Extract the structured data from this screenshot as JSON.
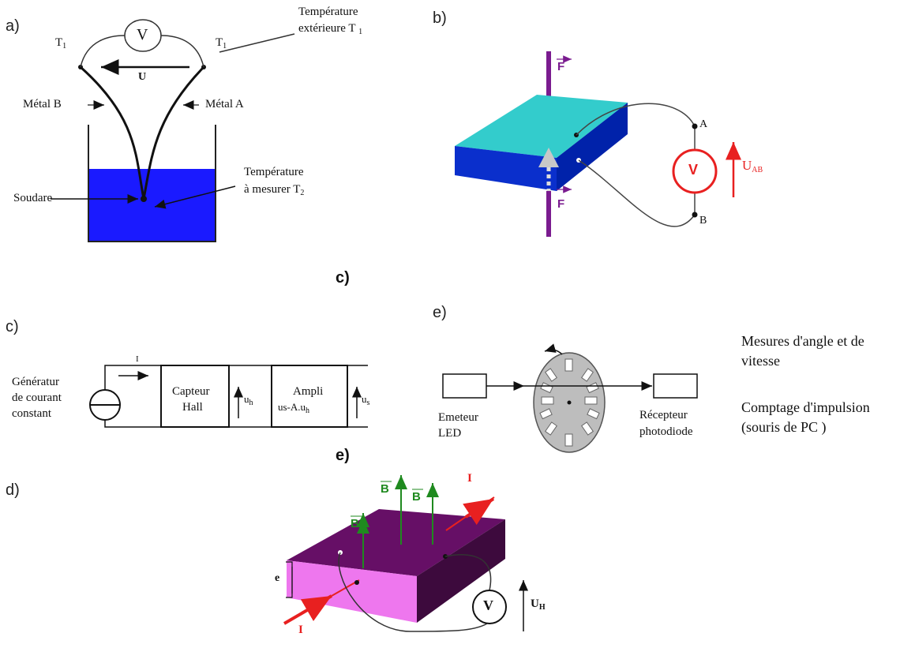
{
  "panel_labels": {
    "a": "a)",
    "b": "b)",
    "c": "c)",
    "e": "e)",
    "d": "d)",
    "c_caption": "c)",
    "e_caption": "e)"
  },
  "thermocouple": {
    "t1_left": "T",
    "t1_left_sub": "1",
    "t1_right": "T",
    "t1_right_sub": "1",
    "voltmeter": "V",
    "u": "U",
    "ext_temp_line1": "Température",
    "ext_temp_line2": "extérieure T",
    "ext_temp_sub": "1",
    "metal_b": "Métal B",
    "metal_a": "Métal A",
    "soudare": "Soudare",
    "meas_temp_line1": "Température",
    "meas_temp_line2": "à mesurer T",
    "meas_temp_sub": "2",
    "liquid_color": "#1a1aff"
  },
  "piezo": {
    "force_top": "F",
    "force_bottom": "F",
    "voltmeter": "V",
    "point_a": "A",
    "point_b": "B",
    "voltage": "U",
    "voltage_sub": "AB",
    "top_color": "#33cccc",
    "side_color": "#0a2fcc",
    "force_color": "#7a1b8f"
  },
  "hall_chain": {
    "generator_line1": "Génératur",
    "generator_line2": "de courant",
    "generator_line3": "constant",
    "current": "I",
    "sensor_line1": "Capteur",
    "sensor_line2": "Hall",
    "uh": "u",
    "uh_sub": "h",
    "amp_line1": "Ampli",
    "amp_line2": "u",
    "amp_line2_rest": "s-A.u",
    "amp_line2_sub": "h",
    "us": "u",
    "us_sub": "s"
  },
  "encoder": {
    "emitter_line1": "Emeteur",
    "emitter_line2": "LED",
    "receiver_line1": "Récepteur",
    "receiver_line2": "photodiode",
    "note1_line1": "Mesures d'angle et de",
    "note1_line2": "vitesse",
    "note2_line1": "Comptage d'impulsion",
    "note2_line2": "(souris de PC )"
  },
  "hall_plate": {
    "b1": "B",
    "b2": "B",
    "b3": "B",
    "current_top": "I",
    "current_bottom": "I",
    "thickness": "e",
    "voltmeter": "V",
    "voltage": "U",
    "voltage_sub": "H",
    "top_color": "#660f66",
    "front_color": "#ee77ee",
    "side_color": "#3d0a3d"
  }
}
